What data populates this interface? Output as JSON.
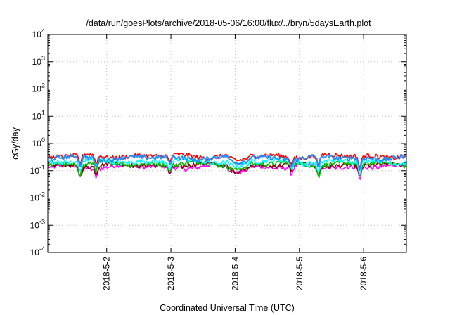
{
  "chart_data": {
    "type": "line",
    "title": "/data/run/goesPlots/archive/2018-05-06/16:00/flux/../bryn/5daysEarth.plot",
    "xlabel": "Coordinated Universal Time (UTC)",
    "ylabel": "cGy/day",
    "y_scale": "log",
    "ylim": [
      0.0001,
      10000
    ],
    "xlim": [
      "2018-05-01T02:00",
      "2018-05-06T16:00"
    ],
    "grid": true,
    "legend": "none",
    "y_ticks": [
      {
        "base": "10",
        "exp": "-4"
      },
      {
        "base": "10",
        "exp": "-3"
      },
      {
        "base": "10",
        "exp": "-2"
      },
      {
        "base": "10",
        "exp": "-1"
      },
      {
        "base": "10",
        "exp": "0"
      },
      {
        "base": "10",
        "exp": "1"
      },
      {
        "base": "10",
        "exp": "2"
      },
      {
        "base": "10",
        "exp": "3"
      },
      {
        "base": "10",
        "exp": "4"
      }
    ],
    "x_ticks": [
      {
        "date": "2018-05-02T00:00",
        "label": "2018-5-2"
      },
      {
        "date": "2018-05-03T00:00",
        "label": "2018-5-3"
      },
      {
        "date": "2018-05-04T00:00",
        "label": "2018-5-4"
      },
      {
        "date": "2018-05-05T00:00",
        "label": "2018-5-5"
      },
      {
        "date": "2018-05-06T00:00",
        "label": "2018-5-6"
      }
    ],
    "series": [
      {
        "color": "#ff00ff",
        "level": 0.14,
        "lines": [
          "2018-05-01T02:00 0.13",
          "2018-05-01T06:00 0.08",
          "2018-05-01T14:00 0.10",
          "2018-05-02T00:00 0.14",
          "2018-05-03T04:00 0.05",
          "2018-05-03T12:00 0.14",
          "2018-05-04T05:00 0.09",
          "2018-05-04T12:00 0.14",
          "2018-05-05T05:00 0.05",
          "2018-05-05T12:00 0.14",
          "2018-05-06T00:00 0.07",
          "2018-05-06T16:00 0.14"
        ]
      },
      {
        "color": "#800000",
        "level": 0.16
      },
      {
        "color": "#00c000",
        "level": 0.18
      },
      {
        "color": "#00ffff",
        "level": 0.22
      },
      {
        "color": "#ff0000",
        "level": 0.35
      },
      {
        "color": "#1e90ff",
        "level": 0.3
      }
    ]
  }
}
